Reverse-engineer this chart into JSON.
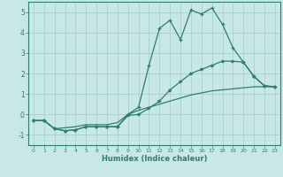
{
  "xlabel": "Humidex (Indice chaleur)",
  "x": [
    0,
    1,
    2,
    3,
    4,
    5,
    6,
    7,
    8,
    9,
    10,
    11,
    12,
    13,
    14,
    15,
    16,
    17,
    18,
    19,
    20,
    21,
    22,
    23
  ],
  "line1": [
    -0.3,
    -0.3,
    -0.7,
    -0.8,
    -0.75,
    -0.6,
    -0.6,
    -0.6,
    -0.6,
    0.0,
    0.35,
    2.4,
    4.2,
    4.6,
    3.65,
    5.1,
    4.9,
    5.2,
    4.4,
    3.25,
    2.55,
    1.85,
    1.4,
    1.35
  ],
  "line2": [
    -0.3,
    -0.3,
    -0.7,
    -0.8,
    -0.75,
    -0.6,
    -0.6,
    -0.6,
    -0.6,
    -0.05,
    0.0,
    0.3,
    0.65,
    1.2,
    1.6,
    2.0,
    2.2,
    2.4,
    2.6,
    2.6,
    2.55,
    1.85,
    1.4,
    1.35
  ],
  "line3": [
    -0.3,
    -0.3,
    -0.7,
    -0.65,
    -0.6,
    -0.5,
    -0.5,
    -0.5,
    -0.4,
    0.0,
    0.2,
    0.35,
    0.5,
    0.65,
    0.8,
    0.95,
    1.05,
    1.15,
    1.2,
    1.25,
    1.3,
    1.35,
    1.35,
    1.35
  ],
  "color": "#2e7d6e",
  "bg_color": "#c8e8e8",
  "grid_color": "#aad0d0",
  "ylim": [
    -1.5,
    5.5
  ],
  "xlim": [
    -0.5,
    23.5
  ],
  "yticks": [
    -1,
    0,
    1,
    2,
    3,
    4,
    5
  ],
  "xticks": [
    0,
    1,
    2,
    3,
    4,
    5,
    6,
    7,
    8,
    9,
    10,
    11,
    12,
    13,
    14,
    15,
    16,
    17,
    18,
    19,
    20,
    21,
    22,
    23
  ]
}
